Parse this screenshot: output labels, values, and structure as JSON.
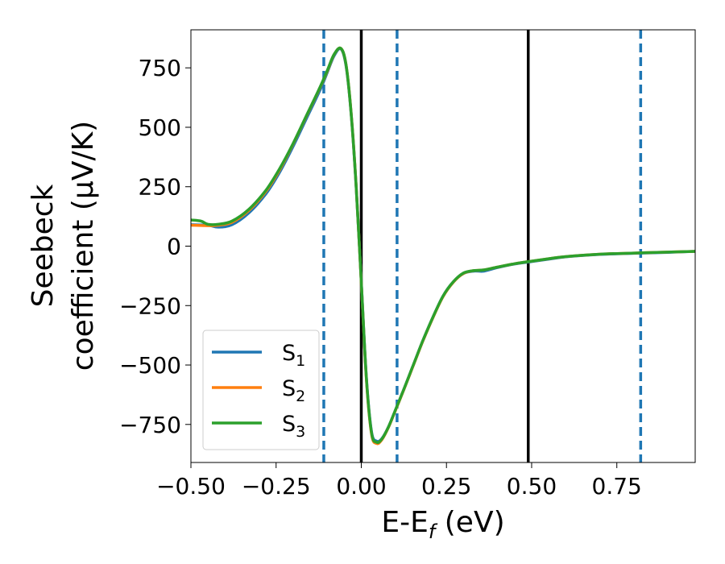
{
  "chart_data": {
    "type": "line",
    "xlabel_main": "E-E",
    "xlabel_sub": "f",
    "xlabel_unit": " (eV)",
    "ylabel_line1": "Seebeck",
    "ylabel_line2": "coefficient  (μV/K)",
    "xlim": [
      -0.5,
      0.98
    ],
    "ylim": [
      -910,
      910
    ],
    "xticks": [
      -0.5,
      -0.25,
      0.0,
      0.25,
      0.5,
      0.75
    ],
    "xtick_labels": [
      "−0.50",
      "−0.25",
      "0.00",
      "0.25",
      "0.50",
      "0.75"
    ],
    "yticks": [
      750,
      500,
      250,
      0,
      -250,
      -500,
      -750
    ],
    "ytick_labels": [
      "750",
      "500",
      "250",
      "0",
      "−250",
      "−500",
      "−750"
    ],
    "grid": false,
    "legend_position": "lower-left",
    "vlines_solid": [
      0.0,
      0.49
    ],
    "vlines_dashed": [
      -0.11,
      0.105,
      0.82
    ],
    "series": [
      {
        "name": "S",
        "subscript": "1",
        "color": "#1f77b4",
        "x": [
          -0.5,
          -0.45,
          -0.42,
          -0.38,
          -0.33,
          -0.28,
          -0.24,
          -0.2,
          -0.16,
          -0.12,
          -0.1,
          -0.08,
          -0.06,
          -0.045,
          -0.03,
          -0.015,
          0.0,
          0.015,
          0.03,
          0.045,
          0.06,
          0.08,
          0.1,
          0.12,
          0.15,
          0.18,
          0.21,
          0.24,
          0.27,
          0.3,
          0.33,
          0.36,
          0.4,
          0.45,
          0.5,
          0.55,
          0.6,
          0.7,
          0.8,
          0.9,
          0.98
        ],
        "y": [
          90,
          88,
          80,
          90,
          140,
          220,
          310,
          420,
          540,
          660,
          730,
          800,
          830,
          760,
          560,
          250,
          -150,
          -550,
          -780,
          -820,
          -810,
          -760,
          -690,
          -620,
          -510,
          -400,
          -300,
          -210,
          -150,
          -115,
          -105,
          -105,
          -90,
          -75,
          -65,
          -55,
          -45,
          -35,
          -30,
          -26,
          -22
        ]
      },
      {
        "name": "S",
        "subscript": "2",
        "color": "#ff7f0e",
        "x": [
          -0.5,
          -0.45,
          -0.42,
          -0.38,
          -0.33,
          -0.28,
          -0.24,
          -0.2,
          -0.16,
          -0.12,
          -0.1,
          -0.08,
          -0.06,
          -0.045,
          -0.03,
          -0.015,
          0.0,
          0.015,
          0.03,
          0.045,
          0.06,
          0.08,
          0.1,
          0.12,
          0.15,
          0.18,
          0.21,
          0.24,
          0.27,
          0.3,
          0.33,
          0.36,
          0.4,
          0.45,
          0.5,
          0.55,
          0.6,
          0.7,
          0.8,
          0.9,
          0.98
        ],
        "y": [
          88,
          86,
          88,
          100,
          150,
          230,
          320,
          430,
          550,
          670,
          735,
          805,
          832,
          765,
          565,
          255,
          -155,
          -560,
          -790,
          -830,
          -815,
          -762,
          -692,
          -622,
          -512,
          -402,
          -302,
          -212,
          -152,
          -115,
          -103,
          -100,
          -88,
          -74,
          -63,
          -53,
          -44,
          -34,
          -29,
          -25,
          -22
        ]
      },
      {
        "name": "S",
        "subscript": "3",
        "color": "#2ca02c",
        "x": [
          -0.5,
          -0.47,
          -0.45,
          -0.42,
          -0.38,
          -0.33,
          -0.28,
          -0.24,
          -0.2,
          -0.16,
          -0.12,
          -0.1,
          -0.08,
          -0.06,
          -0.045,
          -0.03,
          -0.015,
          0.0,
          0.015,
          0.03,
          0.045,
          0.06,
          0.08,
          0.1,
          0.12,
          0.15,
          0.18,
          0.21,
          0.24,
          0.27,
          0.3,
          0.33,
          0.36,
          0.4,
          0.45,
          0.5,
          0.55,
          0.6,
          0.7,
          0.8,
          0.9,
          0.98
        ],
        "y": [
          110,
          105,
          92,
          92,
          105,
          155,
          235,
          325,
          432,
          552,
          672,
          738,
          806,
          832,
          765,
          563,
          253,
          -152,
          -555,
          -785,
          -825,
          -812,
          -760,
          -690,
          -620,
          -510,
          -400,
          -300,
          -210,
          -150,
          -113,
          -103,
          -100,
          -88,
          -74,
          -63,
          -53,
          -44,
          -34,
          -29,
          -25,
          -22
        ]
      }
    ]
  }
}
